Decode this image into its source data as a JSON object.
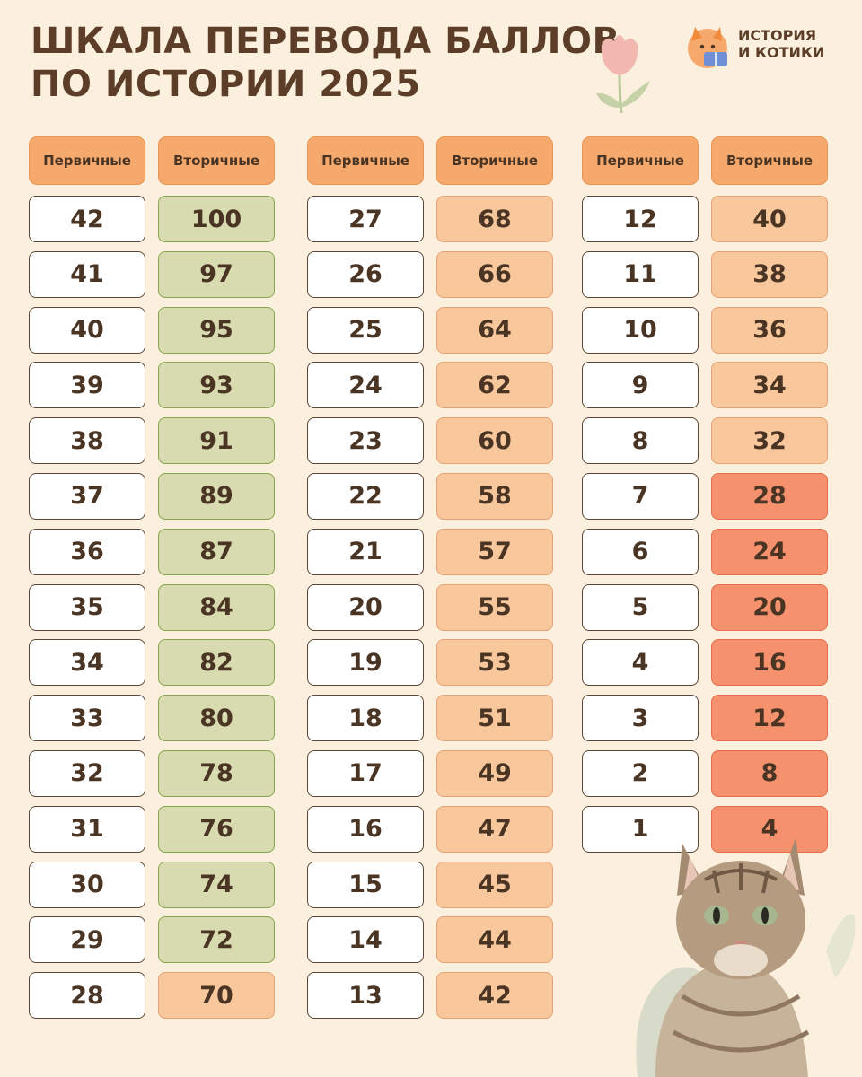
{
  "title": {
    "line1": "Шкала перевода баллов",
    "line2": "по истории 2025"
  },
  "logo": {
    "line1": "История",
    "line2": "и котики"
  },
  "headers": {
    "primary": "Первичные",
    "secondary": "Вторичные"
  },
  "colors": {
    "background": "#fbf0dd",
    "header": "#f6a96c",
    "green": "#d7dbaf",
    "peach": "#f9c79c",
    "red": "#f6916e"
  },
  "columns": [
    {
      "rows": [
        {
          "primary": "42",
          "secondary": "100",
          "tone": "green"
        },
        {
          "primary": "41",
          "secondary": "97",
          "tone": "green"
        },
        {
          "primary": "40",
          "secondary": "95",
          "tone": "green"
        },
        {
          "primary": "39",
          "secondary": "93",
          "tone": "green"
        },
        {
          "primary": "38",
          "secondary": "91",
          "tone": "green"
        },
        {
          "primary": "37",
          "secondary": "89",
          "tone": "green"
        },
        {
          "primary": "36",
          "secondary": "87",
          "tone": "green"
        },
        {
          "primary": "35",
          "secondary": "84",
          "tone": "green"
        },
        {
          "primary": "34",
          "secondary": "82",
          "tone": "green"
        },
        {
          "primary": "33",
          "secondary": "80",
          "tone": "green"
        },
        {
          "primary": "32",
          "secondary": "78",
          "tone": "green"
        },
        {
          "primary": "31",
          "secondary": "76",
          "tone": "green"
        },
        {
          "primary": "30",
          "secondary": "74",
          "tone": "green"
        },
        {
          "primary": "29",
          "secondary": "72",
          "tone": "green"
        },
        {
          "primary": "28",
          "secondary": "70",
          "tone": "peach"
        }
      ]
    },
    {
      "rows": [
        {
          "primary": "27",
          "secondary": "68",
          "tone": "peach"
        },
        {
          "primary": "26",
          "secondary": "66",
          "tone": "peach"
        },
        {
          "primary": "25",
          "secondary": "64",
          "tone": "peach"
        },
        {
          "primary": "24",
          "secondary": "62",
          "tone": "peach"
        },
        {
          "primary": "23",
          "secondary": "60",
          "tone": "peach"
        },
        {
          "primary": "22",
          "secondary": "58",
          "tone": "peach"
        },
        {
          "primary": "21",
          "secondary": "57",
          "tone": "peach"
        },
        {
          "primary": "20",
          "secondary": "55",
          "tone": "peach"
        },
        {
          "primary": "19",
          "secondary": "53",
          "tone": "peach"
        },
        {
          "primary": "18",
          "secondary": "51",
          "tone": "peach"
        },
        {
          "primary": "17",
          "secondary": "49",
          "tone": "peach"
        },
        {
          "primary": "16",
          "secondary": "47",
          "tone": "peach"
        },
        {
          "primary": "15",
          "secondary": "45",
          "tone": "peach"
        },
        {
          "primary": "14",
          "secondary": "44",
          "tone": "peach"
        },
        {
          "primary": "13",
          "secondary": "42",
          "tone": "peach"
        }
      ]
    },
    {
      "rows": [
        {
          "primary": "12",
          "secondary": "40",
          "tone": "peach"
        },
        {
          "primary": "11",
          "secondary": "38",
          "tone": "peach"
        },
        {
          "primary": "10",
          "secondary": "36",
          "tone": "peach"
        },
        {
          "primary": "9",
          "secondary": "34",
          "tone": "peach"
        },
        {
          "primary": "8",
          "secondary": "32",
          "tone": "peach"
        },
        {
          "primary": "7",
          "secondary": "28",
          "tone": "red"
        },
        {
          "primary": "6",
          "secondary": "24",
          "tone": "red"
        },
        {
          "primary": "5",
          "secondary": "20",
          "tone": "red"
        },
        {
          "primary": "4",
          "secondary": "16",
          "tone": "red"
        },
        {
          "primary": "3",
          "secondary": "12",
          "tone": "red"
        },
        {
          "primary": "2",
          "secondary": "8",
          "tone": "red"
        },
        {
          "primary": "1",
          "secondary": "4",
          "tone": "red"
        }
      ]
    }
  ],
  "icons": [
    "tulip-icon",
    "cat-logo-icon",
    "cat-photo"
  ]
}
